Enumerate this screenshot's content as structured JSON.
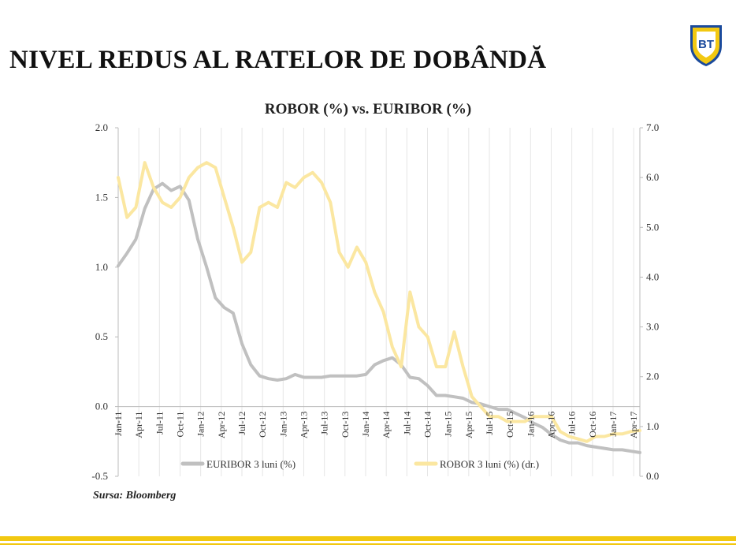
{
  "header": {
    "title": "NIVEL REDUS AL RATELOR DE DOBÂNDĂ",
    "logo_text": "BT",
    "logo_colors": {
      "shield": "#f2c811",
      "border": "#1a4a9c",
      "inner": "#ffffff",
      "text": "#1a4a9c"
    }
  },
  "footer": {
    "source": "Sursa: Bloomberg"
  },
  "chart_data": {
    "type": "line",
    "title": "ROBOR (%) vs. EURIBOR (%)",
    "x_labels": [
      "Jan-11",
      "Apr-11",
      "Jul-11",
      "Oct-11",
      "Jan-12",
      "Apr-12",
      "Jul-12",
      "Oct-12",
      "Jan-13",
      "Apr-13",
      "Jul-13",
      "Oct-13",
      "Jan-14",
      "Apr-14",
      "Jul-14",
      "Oct-14",
      "Jan-15",
      "Apr-15",
      "Jul-15",
      "Oct-15",
      "Jan-16",
      "Apr-16",
      "Jul-16",
      "Oct-16",
      "Jan-17",
      "Apr-17"
    ],
    "y_left": {
      "min": -0.5,
      "max": 2.0,
      "ticks": [
        "-0.5",
        "0.0",
        "0.5",
        "1.0",
        "1.5",
        "2.0"
      ]
    },
    "y_right": {
      "min": 0.0,
      "max": 7.0,
      "ticks": [
        "0.0",
        "1.0",
        "2.0",
        "3.0",
        "4.0",
        "5.0",
        "6.0",
        "7.0"
      ]
    },
    "grid": "vertical",
    "legend_position": "bottom",
    "series": [
      {
        "name": "EURIBOR 3 luni (%)",
        "axis": "left",
        "color": "#c0c0c0",
        "values": [
          1.01,
          1.1,
          1.2,
          1.42,
          1.56,
          1.6,
          1.55,
          1.58,
          1.48,
          1.2,
          1.0,
          0.78,
          0.71,
          0.67,
          0.45,
          0.3,
          0.22,
          0.2,
          0.19,
          0.2,
          0.23,
          0.21,
          0.21,
          0.21,
          0.22,
          0.22,
          0.22,
          0.22,
          0.23,
          0.3,
          0.33,
          0.35,
          0.3,
          0.21,
          0.2,
          0.15,
          0.08,
          0.08,
          0.07,
          0.06,
          0.03,
          0.02,
          0.0,
          -0.02,
          -0.02,
          -0.05,
          -0.08,
          -0.12,
          -0.15,
          -0.2,
          -0.24,
          -0.26,
          -0.26,
          -0.28,
          -0.29,
          -0.3,
          -0.31,
          -0.31,
          -0.32,
          -0.33
        ]
      },
      {
        "name": "ROBOR 3 luni (%) (dr.)",
        "axis": "right",
        "color": "#fbe7a1",
        "values": [
          6.0,
          5.2,
          5.4,
          6.3,
          5.8,
          5.5,
          5.4,
          5.6,
          6.0,
          6.2,
          6.3,
          6.2,
          5.6,
          5.0,
          4.3,
          4.5,
          5.4,
          5.5,
          5.4,
          5.9,
          5.8,
          6.0,
          6.1,
          5.9,
          5.5,
          4.5,
          4.2,
          4.6,
          4.3,
          3.7,
          3.3,
          2.6,
          2.2,
          3.7,
          3.0,
          2.8,
          2.2,
          2.2,
          2.9,
          2.2,
          1.6,
          1.4,
          1.2,
          1.2,
          1.1,
          1.1,
          1.1,
          1.2,
          1.2,
          1.2,
          0.9,
          0.8,
          0.75,
          0.7,
          0.8,
          0.8,
          0.85,
          0.85,
          0.9,
          0.92
        ]
      }
    ]
  }
}
